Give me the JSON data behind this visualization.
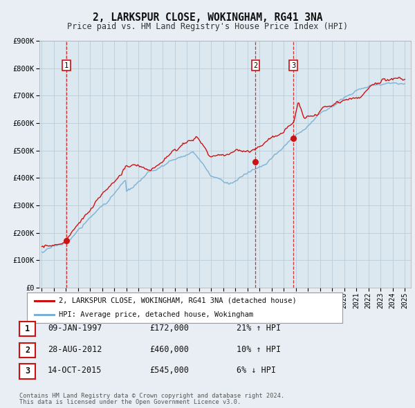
{
  "title": "2, LARKSPUR CLOSE, WOKINGHAM, RG41 3NA",
  "subtitle": "Price paid vs. HM Land Registry's House Price Index (HPI)",
  "title_fontsize": 10.5,
  "subtitle_fontsize": 8.5,
  "bg_color": "#e8eef4",
  "plot_bg_color": "#dce8f0",
  "grid_color": "#b8ccd8",
  "ylim": [
    0,
    900000
  ],
  "yticks": [
    0,
    100000,
    200000,
    300000,
    400000,
    500000,
    600000,
    700000,
    800000,
    900000
  ],
  "ytick_labels": [
    "£0",
    "£100K",
    "£200K",
    "£300K",
    "£400K",
    "£500K",
    "£600K",
    "£700K",
    "£800K",
    "£900K"
  ],
  "xlim_start": 1994.8,
  "xlim_end": 2025.5,
  "xtick_years": [
    1995,
    1996,
    1997,
    1998,
    1999,
    2000,
    2001,
    2002,
    2003,
    2004,
    2005,
    2006,
    2007,
    2008,
    2009,
    2010,
    2011,
    2012,
    2013,
    2014,
    2015,
    2016,
    2017,
    2018,
    2019,
    2020,
    2021,
    2022,
    2023,
    2024,
    2025
  ],
  "property_color": "#cc1111",
  "hpi_color": "#7ab0d4",
  "vline_color": "#cc1111",
  "transactions": [
    {
      "num": 1,
      "date_dec": 1997.03,
      "price": 172000,
      "date_str": "09-JAN-1997",
      "pct": "21%",
      "dir": "↑"
    },
    {
      "num": 2,
      "date_dec": 2012.66,
      "price": 460000,
      "date_str": "28-AUG-2012",
      "pct": "10%",
      "dir": "↑"
    },
    {
      "num": 3,
      "date_dec": 2015.79,
      "price": 545000,
      "date_str": "14-OCT-2015",
      "pct": "6%",
      "dir": "↓"
    }
  ],
  "legend_property_label": "2, LARKSPUR CLOSE, WOKINGHAM, RG41 3NA (detached house)",
  "legend_hpi_label": "HPI: Average price, detached house, Wokingham",
  "footer1": "Contains HM Land Registry data © Crown copyright and database right 2024.",
  "footer2": "This data is licensed under the Open Government Licence v3.0."
}
